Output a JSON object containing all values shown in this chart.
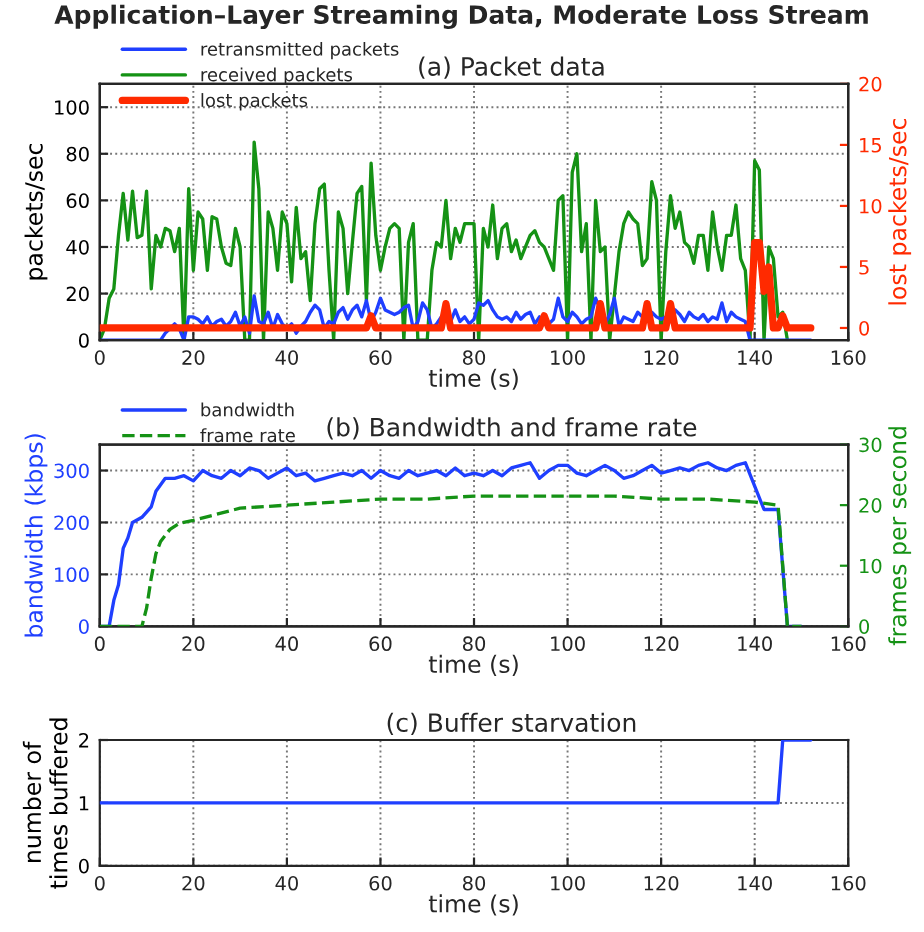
{
  "chart_data": [
    {
      "type": "line",
      "title": "Application–Layer Streaming Data, Moderate Loss Stream",
      "subtitle": "(a) Packet data",
      "xlabel": "time (s)",
      "ylabel": "packets/sec",
      "y2label": "lost packets/sec",
      "xlim": [
        0,
        160
      ],
      "xticks": [
        0,
        20,
        40,
        60,
        80,
        100,
        120,
        140,
        160
      ],
      "ylim": [
        0,
        110
      ],
      "yticks": [
        0,
        20,
        40,
        60,
        80,
        100
      ],
      "y2lim": [
        -1,
        20
      ],
      "y2ticks": [
        0,
        5,
        10,
        15,
        20
      ],
      "grid": true,
      "legend": "top left",
      "series": [
        {
          "name": "retransmitted packets",
          "color": "#1f3fff",
          "x": [
            0,
            1,
            2,
            3,
            4,
            5,
            6,
            7,
            8,
            9,
            10,
            11,
            12,
            13,
            14,
            15,
            16,
            17,
            18,
            19,
            20,
            21,
            22,
            23,
            24,
            25,
            26,
            27,
            28,
            29,
            30,
            31,
            32,
            33,
            34,
            35,
            36,
            37,
            38,
            39,
            40,
            41,
            42,
            43,
            44,
            45,
            46,
            47,
            48,
            49,
            50,
            51,
            52,
            53,
            54,
            55,
            56,
            57,
            58,
            59,
            60,
            61,
            62,
            63,
            64,
            65,
            66,
            67,
            68,
            69,
            70,
            71,
            72,
            73,
            74,
            75,
            76,
            77,
            78,
            79,
            80,
            81,
            82,
            83,
            84,
            85,
            86,
            87,
            88,
            89,
            90,
            91,
            92,
            93,
            94,
            95,
            96,
            97,
            98,
            99,
            100,
            101,
            102,
            103,
            104,
            105,
            106,
            107,
            108,
            109,
            110,
            111,
            112,
            113,
            114,
            115,
            116,
            117,
            118,
            119,
            120,
            121,
            122,
            123,
            124,
            125,
            126,
            127,
            128,
            129,
            130,
            131,
            132,
            133,
            134,
            135,
            136,
            137,
            138,
            139,
            140,
            141,
            142,
            143,
            144,
            145,
            146,
            147,
            148,
            149,
            150,
            151,
            152
          ],
          "values": [
            0,
            0,
            0,
            0,
            0,
            0,
            0,
            0,
            0,
            0,
            0,
            0,
            0,
            0,
            3,
            5,
            7,
            5,
            0,
            10,
            10,
            9,
            7,
            10,
            6,
            8,
            9,
            6,
            8,
            12,
            6,
            10,
            3,
            19,
            8,
            7,
            12,
            5,
            11,
            7,
            5,
            7,
            3,
            6,
            8,
            12,
            15,
            13,
            5,
            8,
            7,
            12,
            14,
            9,
            13,
            15,
            10,
            17,
            8,
            12,
            18,
            13,
            12,
            11,
            12,
            14,
            15,
            5,
            8,
            16,
            13,
            5,
            7,
            10,
            12,
            8,
            13,
            8,
            10,
            7,
            9,
            16,
            15,
            17,
            13,
            10,
            9,
            10,
            8,
            12,
            9,
            11,
            12,
            7,
            10,
            8,
            7,
            9,
            18,
            10,
            8,
            12,
            10,
            7,
            9,
            10,
            18,
            13,
            7,
            11,
            18,
            6,
            10,
            9,
            8,
            12,
            10,
            11,
            12,
            10,
            9,
            10,
            8,
            13,
            11,
            8,
            12,
            10,
            9,
            11,
            8,
            10,
            9,
            16,
            8,
            12,
            10,
            9,
            8,
            0,
            0,
            0,
            0,
            0,
            0,
            0,
            0,
            0,
            0,
            0,
            0,
            0,
            0
          ]
        },
        {
          "name": "received packets",
          "color": "#159215",
          "x": [
            0,
            1,
            2,
            3,
            4,
            5,
            6,
            7,
            8,
            9,
            10,
            11,
            12,
            13,
            14,
            15,
            16,
            17,
            18,
            19,
            20,
            21,
            22,
            23,
            24,
            25,
            26,
            27,
            28,
            29,
            30,
            31,
            32,
            33,
            34,
            35,
            36,
            37,
            38,
            39,
            40,
            41,
            42,
            43,
            44,
            45,
            46,
            47,
            48,
            49,
            50,
            51,
            52,
            53,
            54,
            55,
            56,
            57,
            58,
            59,
            60,
            61,
            62,
            63,
            64,
            65,
            66,
            67,
            68,
            69,
            70,
            71,
            72,
            73,
            74,
            75,
            76,
            77,
            78,
            79,
            80,
            81,
            82,
            83,
            84,
            85,
            86,
            87,
            88,
            89,
            90,
            91,
            92,
            93,
            94,
            95,
            96,
            97,
            98,
            99,
            100,
            101,
            102,
            103,
            104,
            105,
            106,
            107,
            108,
            109,
            110,
            111,
            112,
            113,
            114,
            115,
            116,
            117,
            118,
            119,
            120,
            121,
            122,
            123,
            124,
            125,
            126,
            127,
            128,
            129,
            130,
            131,
            132,
            133,
            134,
            135,
            136,
            137,
            138,
            139,
            140,
            141,
            142,
            143,
            144,
            145,
            146,
            147
          ],
          "values": [
            0,
            5,
            18,
            22,
            45,
            63,
            43,
            64,
            44,
            45,
            64,
            22,
            45,
            40,
            48,
            47,
            38,
            48,
            0,
            65,
            30,
            55,
            52,
            30,
            53,
            52,
            40,
            33,
            32,
            48,
            40,
            0,
            0,
            85,
            65,
            0,
            55,
            48,
            30,
            55,
            50,
            25,
            57,
            35,
            38,
            17,
            50,
            65,
            67,
            30,
            0,
            55,
            48,
            20,
            42,
            63,
            66,
            17,
            76,
            45,
            30,
            40,
            48,
            50,
            48,
            0,
            42,
            50,
            0,
            null,
            0,
            30,
            42,
            40,
            60,
            35,
            48,
            42,
            50,
            50,
            50,
            0,
            48,
            40,
            58,
            35,
            48,
            50,
            38,
            43,
            35,
            40,
            45,
            47,
            42,
            40,
            35,
            30,
            60,
            62,
            0,
            72,
            80,
            38,
            50,
            0,
            60,
            38,
            40,
            0,
            null,
            38,
            50,
            55,
            52,
            50,
            32,
            35,
            68,
            60,
            0,
            38,
            62,
            48,
            55,
            42,
            40,
            33,
            45,
            45,
            30,
            55,
            40,
            30,
            45,
            45,
            58,
            35,
            30,
            0,
            77,
            73,
            0,
            40,
            35,
            10,
            12,
            0
          ]
        },
        {
          "name": "lost packets",
          "color": "#ff2a00",
          "axis": "y2",
          "x": [
            0,
            57,
            58,
            59,
            73,
            74,
            75,
            94,
            95,
            96,
            106,
            107,
            108,
            116,
            117,
            118,
            121,
            122,
            123,
            139,
            140,
            141,
            142,
            143,
            144,
            145,
            146,
            147,
            152
          ],
          "values": [
            0,
            0,
            1,
            0,
            0,
            2,
            0,
            0,
            1,
            0,
            0,
            2,
            0,
            0,
            2,
            0,
            0,
            2,
            0,
            0,
            7,
            7,
            3,
            5,
            0,
            0,
            1,
            0,
            0
          ]
        }
      ]
    },
    {
      "type": "line",
      "title": "(b) Bandwidth and frame rate",
      "xlabel": "time (s)",
      "ylabel": "bandwidth (kbps)",
      "y2label": "frames per second",
      "xlim": [
        0,
        160
      ],
      "xticks": [
        0,
        20,
        40,
        60,
        80,
        100,
        120,
        140,
        160
      ],
      "ylim": [
        0,
        350
      ],
      "yticks": [
        0,
        100,
        200,
        300
      ],
      "y2lim": [
        0,
        30
      ],
      "y2ticks": [
        0,
        10,
        20,
        30
      ],
      "grid": true,
      "legend": "top left",
      "series": [
        {
          "name": "bandwidth",
          "color": "#1f3fff",
          "line_style": "solid",
          "x": [
            0,
            2,
            3,
            4,
            5,
            6,
            7,
            9,
            11,
            12,
            14,
            16,
            18,
            20,
            22,
            24,
            26,
            28,
            30,
            32,
            34,
            36,
            38,
            40,
            42,
            44,
            46,
            48,
            50,
            52,
            54,
            56,
            58,
            60,
            62,
            64,
            66,
            68,
            70,
            72,
            74,
            76,
            78,
            80,
            82,
            84,
            86,
            88,
            90,
            92,
            94,
            96,
            98,
            100,
            102,
            104,
            106,
            108,
            110,
            112,
            114,
            116,
            118,
            120,
            122,
            124,
            126,
            128,
            130,
            132,
            134,
            136,
            138,
            140,
            142,
            145,
            147,
            150
          ],
          "values": [
            0,
            0,
            50,
            80,
            150,
            170,
            200,
            210,
            230,
            260,
            285,
            285,
            290,
            280,
            300,
            290,
            285,
            300,
            290,
            305,
            300,
            285,
            295,
            305,
            290,
            295,
            280,
            285,
            290,
            295,
            290,
            300,
            285,
            300,
            290,
            285,
            300,
            290,
            295,
            300,
            290,
            305,
            290,
            295,
            290,
            300,
            290,
            305,
            310,
            315,
            285,
            300,
            310,
            310,
            295,
            290,
            300,
            310,
            300,
            285,
            290,
            300,
            310,
            295,
            300,
            305,
            300,
            310,
            315,
            305,
            300,
            310,
            315,
            270,
            225,
            225,
            0,
            0
          ]
        },
        {
          "name": "frame rate",
          "color": "#159215",
          "axis": "y2",
          "line_style": "dashed",
          "x": [
            0,
            9,
            10,
            11,
            12,
            13,
            15,
            17,
            20,
            25,
            30,
            40,
            50,
            60,
            70,
            80,
            90,
            100,
            110,
            120,
            130,
            140,
            145,
            146,
            147,
            150
          ],
          "values": [
            0,
            0,
            3,
            8,
            12,
            14,
            16,
            17,
            17.5,
            18.5,
            19.5,
            20,
            20.5,
            21,
            21,
            21.5,
            21.5,
            21.5,
            21.5,
            21,
            21,
            20.5,
            20,
            10,
            0,
            0
          ]
        }
      ]
    },
    {
      "type": "line",
      "title": "(c) Buffer starvation",
      "xlabel": "time (s)",
      "ylabel": "number of\ntimes buffered",
      "xlim": [
        0,
        160
      ],
      "xticks": [
        0,
        20,
        40,
        60,
        80,
        100,
        120,
        140,
        160
      ],
      "ylim": [
        0,
        2
      ],
      "yticks": [
        0,
        1,
        2
      ],
      "grid": true,
      "series": [
        {
          "color": "#1f3fff",
          "x": [
            0,
            145,
            146,
            152
          ],
          "values": [
            1,
            1,
            2,
            2
          ]
        }
      ]
    }
  ]
}
